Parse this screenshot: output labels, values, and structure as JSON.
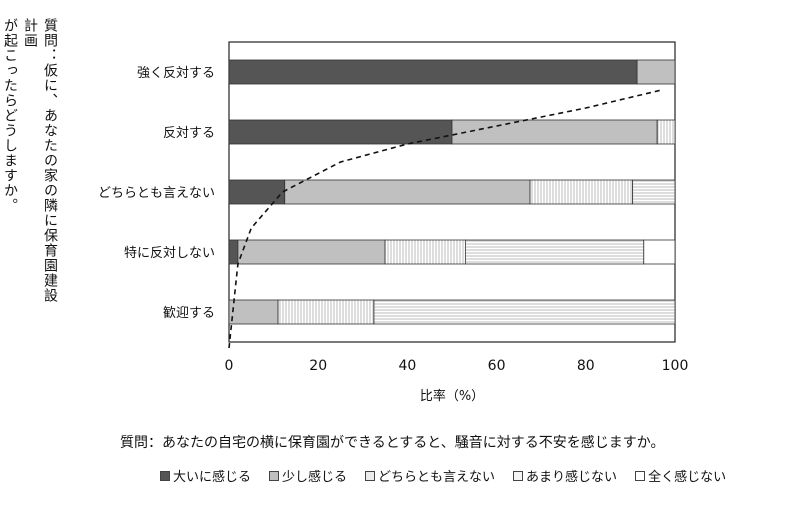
{
  "question_side_line1": "質問：仮に、あなたの家の隣に保育園建設計画",
  "question_side_line2": "が起こったらどうしますか。",
  "question_bottom": "質問：あなたの自宅の横に保育園ができるとすると、騒音に対する不安を感じますか。",
  "colors": {
    "大いに感じる": "#555555",
    "少し感じる": "#c0c0c0",
    "どちらとも言えない": "#ececec",
    "あまり感じない": "#f5f5f5",
    "全く感じない": "#ffffff"
  },
  "chart_data": {
    "type": "bar",
    "orientation": "horizontal",
    "stacked": true,
    "categories": [
      "強く反対する",
      "反対する",
      "どちらとも言えない",
      "特に反対しない",
      "歓迎する"
    ],
    "xlabel": "比率（%）",
    "xlim": [
      0,
      100
    ],
    "xticks": [
      0,
      20,
      40,
      60,
      80,
      100
    ],
    "grid": false,
    "legend_position": "bottom",
    "series": [
      {
        "name": "大いに感じる",
        "values": [
          91.5,
          50,
          12.5,
          2,
          0
        ]
      },
      {
        "name": "少し感じる",
        "values": [
          8.5,
          46,
          55,
          33,
          11
        ]
      },
      {
        "name": "どちらとも言えない",
        "values": [
          0,
          4,
          23,
          18,
          21.5
        ]
      },
      {
        "name": "あまり感じない",
        "values": [
          0,
          0,
          9.5,
          40,
          67.5
        ]
      },
      {
        "name": "全く感じない",
        "values": [
          0,
          0,
          0,
          7,
          0
        ]
      }
    ],
    "curve": {
      "style": "dashed",
      "points": [
        [
          0,
          4.6
        ],
        [
          2,
          3.2
        ],
        [
          5,
          2.6
        ],
        [
          12,
          2.0
        ],
        [
          25,
          1.5
        ],
        [
          40,
          1.2
        ],
        [
          60,
          0.9
        ],
        [
          80,
          0.6
        ],
        [
          97,
          0.3
        ]
      ]
    }
  }
}
